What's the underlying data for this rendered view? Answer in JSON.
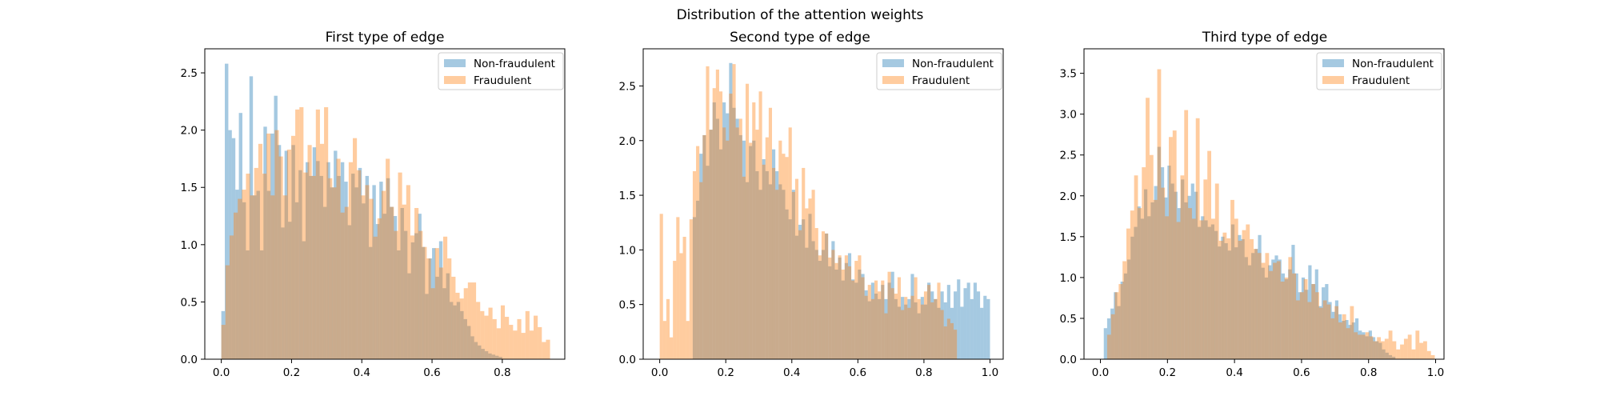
{
  "figure": {
    "suptitle": "Distribution of the attention weights"
  },
  "chart_data": [
    {
      "type": "histogram",
      "title": "First type of edge",
      "xlim": [
        -0.047,
        0.978
      ],
      "ylim": [
        0,
        2.71
      ],
      "xticks": [
        "0.0",
        "0.2",
        "0.4",
        "0.6",
        "0.8"
      ],
      "yticks": [
        "0.0",
        "0.5",
        "1.0",
        "1.5",
        "2.0",
        "2.5"
      ],
      "legend_position": "upper right",
      "series": [
        {
          "name": "Non-fraudulent",
          "color": "#1f77b4",
          "opacity": 0.4,
          "bin_start": 0.0,
          "bin_width": 0.01,
          "values": [
            0.42,
            2.58,
            2.0,
            1.93,
            1.48,
            2.15,
            1.37,
            0.95,
            2.47,
            1.43,
            1.47,
            0.95,
            2.03,
            1.47,
            1.97,
            2.3,
            1.87,
            1.15,
            1.82,
            1.2,
            1.87,
            1.37,
            1.65,
            1.03,
            1.72,
            1.6,
            1.85,
            1.73,
            1.6,
            1.33,
            1.72,
            1.5,
            1.82,
            1.6,
            1.72,
            1.55,
            1.17,
            1.62,
            1.5,
            1.67,
            1.36,
            1.6,
            0.98,
            1.52,
            1.18,
            1.55,
            1.27,
            1.58,
            1.33,
            1.25,
            0.95,
            1.32,
            1.12,
            0.75,
            1.02,
            1.1,
            1.27,
            0.98,
            0.57,
            0.88,
            0.97,
            0.72,
            1.03,
            0.62,
            0.75,
            0.5,
            0.47,
            0.5,
            0.42,
            0.35,
            0.29,
            0.2,
            0.15,
            0.12,
            0.09,
            0.07,
            0.05,
            0.04,
            0.03,
            0.02
          ]
        },
        {
          "name": "Fraudulent",
          "color": "#ff7f0e",
          "opacity": 0.4,
          "bin_start": 0.0,
          "bin_width": 0.0117,
          "values": [
            0.3,
            0.82,
            1.08,
            1.28,
            1.4,
            1.48,
            1.62,
            1.43,
            1.67,
            1.88,
            1.62,
            1.97,
            1.43,
            2.0,
            1.77,
            1.43,
            1.83,
            1.95,
            2.18,
            2.2,
            1.63,
            1.87,
            1.6,
            2.18,
            1.88,
            2.2,
            1.58,
            1.5,
            1.75,
            1.28,
            1.33,
            1.72,
            1.93,
            1.65,
            1.43,
            1.52,
            1.4,
            1.07,
            1.23,
            1.47,
            1.75,
            1.33,
            1.12,
            1.63,
            1.35,
            1.52,
            1.08,
            1.32,
            1.12,
            0.98,
            0.88,
            0.62,
            0.97,
            0.8,
            1.07,
            0.88,
            0.72,
            0.58,
            0.53,
            0.62,
            0.67,
            0.67,
            0.5,
            0.42,
            0.38,
            0.45,
            0.35,
            0.27,
            0.47,
            0.37,
            0.3,
            0.25,
            0.35,
            0.23,
            0.42,
            0.25,
            0.38,
            0.28,
            0.15,
            0.17
          ]
        }
      ]
    },
    {
      "type": "histogram",
      "title": "Second type of edge",
      "xlim": [
        -0.05,
        1.04
      ],
      "ylim": [
        0,
        2.84
      ],
      "xticks": [
        "0.0",
        "0.2",
        "0.4",
        "0.6",
        "0.8",
        "1.0"
      ],
      "yticks": [
        "0.0",
        "0.5",
        "1.0",
        "1.5",
        "2.0",
        "2.5"
      ],
      "legend_position": "upper right",
      "series": [
        {
          "name": "Non-fraudulent",
          "color": "#1f77b4",
          "opacity": 0.4,
          "bin_start": 0.1,
          "bin_width": 0.01,
          "values": [
            1.3,
            1.45,
            1.88,
            2.05,
            1.77,
            2.1,
            2.35,
            2.2,
            1.92,
            2.35,
            2.25,
            2.71,
            2.3,
            2.2,
            2.05,
            2.0,
            1.62,
            1.95,
            2.0,
            1.72,
            1.55,
            1.83,
            1.72,
            1.6,
            1.92,
            1.72,
            1.6,
            1.55,
            1.37,
            1.28,
            1.55,
            1.13,
            1.23,
            1.28,
            1.02,
            1.33,
            1.08,
            1.0,
            0.9,
            1.0,
            1.15,
            0.85,
            1.08,
            0.82,
            0.93,
            0.72,
            0.88,
            0.97,
            0.73,
            0.7,
            0.82,
            0.78,
            0.63,
            0.53,
            0.7,
            0.6,
            0.55,
            0.68,
            0.55,
            0.7,
            0.8,
            0.55,
            0.48,
            0.57,
            0.5,
            0.55,
            0.78,
            0.52,
            0.42,
            0.57,
            0.5,
            0.7,
            0.62,
            0.55,
            0.47,
            0.62,
            0.52,
            0.68,
            0.47,
            0.62,
            0.73,
            0.48,
            0.65,
            0.7,
            0.55,
            0.7,
            0.62,
            0.47,
            0.58,
            0.55
          ]
        },
        {
          "name": "Fraudulent",
          "color": "#ff7f0e",
          "opacity": 0.4,
          "bin_start": 0.0,
          "bin_width": 0.01,
          "values": [
            1.33,
            0.35,
            0.55,
            0.2,
            0.9,
            1.3,
            0.97,
            1.12,
            0.35,
            1.28,
            1.72,
            1.95,
            1.62,
            2.05,
            2.68,
            2.1,
            2.48,
            2.65,
            2.45,
            2.12,
            2.0,
            2.43,
            2.7,
            2.12,
            2.2,
            1.67,
            2.52,
            1.98,
            2.35,
            2.1,
            2.45,
            1.78,
            2.03,
            2.3,
            1.75,
            1.55,
            2.0,
            1.88,
            1.85,
            2.12,
            1.53,
            1.65,
            1.18,
            1.75,
            1.38,
            1.47,
            1.55,
            1.2,
            0.95,
            1.17,
            1.15,
            0.93,
            1.0,
            0.88,
            0.95,
            0.82,
            0.95,
            0.85,
            0.72,
            0.9,
            0.95,
            0.75,
            0.58,
            0.68,
            0.55,
            0.72,
            0.62,
            0.72,
            0.42,
            0.8,
            0.65,
            0.6,
            0.75,
            0.45,
            0.57,
            0.47,
            0.58,
            0.75,
            0.55,
            0.5,
            0.62,
            0.68,
            0.52,
            0.55,
            0.7,
            0.45,
            0.3,
            0.37,
            0.33,
            0.27
          ]
        }
      ]
    },
    {
      "type": "histogram",
      "title": "Third type of edge",
      "xlim": [
        -0.049,
        1.025
      ],
      "ylim": [
        0,
        3.8
      ],
      "xticks": [
        "0.0",
        "0.2",
        "0.4",
        "0.6",
        "0.8",
        "1.0"
      ],
      "yticks": [
        "0.0",
        "0.5",
        "1.0",
        "1.5",
        "2.0",
        "2.5",
        "3.0",
        "3.5"
      ],
      "legend_position": "upper right",
      "series": [
        {
          "name": "Non-fraudulent",
          "color": "#1f77b4",
          "opacity": 0.4,
          "bin_start": 0.01,
          "bin_width": 0.01,
          "values": [
            0.38,
            0.5,
            0.62,
            0.82,
            0.65,
            0.95,
            1.05,
            1.22,
            1.5,
            1.62,
            1.87,
            1.72,
            2.08,
            1.75,
            1.92,
            2.12,
            2.6,
            2.35,
            1.98,
            2.37,
            2.15,
            2.05,
            1.85,
            2.2,
            1.92,
            2.0,
            2.15,
            2.05,
            1.62,
            1.75,
            1.7,
            1.62,
            1.65,
            1.57,
            1.38,
            1.5,
            1.42,
            1.33,
            1.65,
            1.37,
            1.52,
            1.47,
            1.25,
            1.15,
            1.3,
            1.35,
            1.52,
            1.12,
            1.0,
            1.15,
            1.22,
            1.27,
            1.22,
            1.05,
            0.98,
            1.1,
            1.4,
            1.05,
            0.82,
            1.0,
            0.85,
            1.15,
            0.92,
            1.1,
            0.65,
            0.88,
            0.92,
            0.7,
            0.58,
            0.72,
            0.55,
            0.47,
            0.48,
            0.42,
            0.45,
            0.5,
            0.35,
            0.33,
            0.28,
            0.35,
            0.27,
            0.22,
            0.2,
            0.12,
            0.08,
            0.05,
            0.03
          ]
        },
        {
          "name": "Fraudulent",
          "color": "#ff7f0e",
          "opacity": 0.4,
          "bin_start": 0.02,
          "bin_width": 0.0115,
          "values": [
            0.3,
            0.55,
            0.82,
            0.92,
            1.2,
            1.6,
            1.82,
            2.25,
            1.85,
            2.35,
            3.2,
            2.5,
            1.95,
            3.55,
            2.1,
            1.75,
            2.72,
            2.8,
            1.68,
            2.25,
            3.05,
            1.85,
            1.72,
            2.95,
            1.7,
            2.2,
            2.55,
            1.72,
            2.15,
            1.45,
            1.55,
            1.48,
            1.95,
            1.72,
            1.45,
            1.58,
            1.65,
            1.47,
            1.35,
            1.3,
            1.18,
            1.3,
            1.08,
            1.18,
            1.2,
            0.95,
            1.0,
            1.25,
            1.05,
            0.72,
            0.82,
            0.98,
            0.7,
            0.92,
            0.82,
            0.63,
            0.72,
            0.67,
            0.5,
            0.65,
            0.45,
            0.55,
            0.38,
            0.65,
            0.33,
            0.3,
            0.3,
            0.33,
            0.28,
            0.22,
            0.27,
            0.22,
            0.25,
            0.35,
            0.22,
            0.12,
            0.18,
            0.25,
            0.3,
            0.12,
            0.35,
            0.2,
            0.22,
            0.1,
            0.05
          ]
        }
      ]
    }
  ]
}
